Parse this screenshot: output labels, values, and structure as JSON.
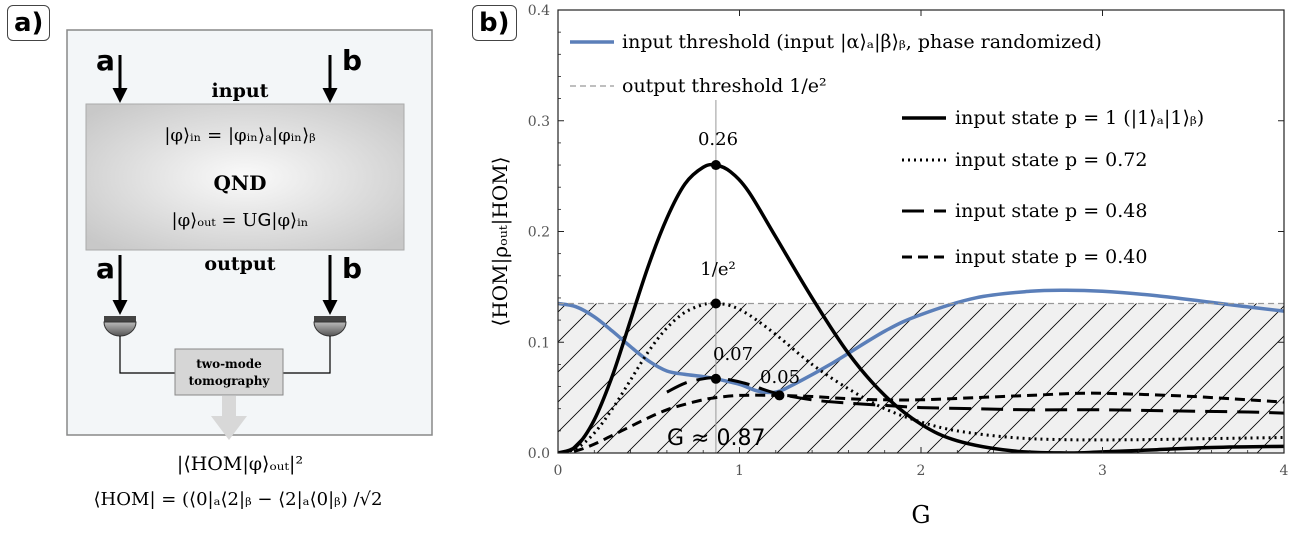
{
  "panel_a": {
    "label": "a)",
    "mode_a": "a",
    "mode_b": "b",
    "input_label": "input",
    "output_label": "output",
    "state_in": "|φ⟩ᵢₙ = |φᵢₙ⟩ₐ|φᵢₙ⟩ᵦ",
    "qnd_label": "QND",
    "state_out": "|φ⟩ₒᵤₜ = U𝖦|φ⟩ᵢₙ",
    "tomography_line1": "two-mode",
    "tomography_line2": "tomography",
    "formula1": "|⟨HOM|φ⟩ₒᵤₜ|²",
    "formula2": "⟨HOM| = (⟨0|ₐ⟨2|ᵦ − ⟨2|ₐ⟨0|ᵦ) /√2"
  },
  "panel_b": {
    "label": "b)",
    "annot_G": "𝖦 ≈ 0.87",
    "annot_026": "0.26",
    "annot_1e2": "1/e²",
    "annot_007": "0.07",
    "annot_005": "0.05"
  },
  "chart_data": {
    "type": "line",
    "xlabel": "G",
    "ylabel": "⟨HOM|ρₒᵤₜ|HOM⟩",
    "xlim": [
      0,
      4
    ],
    "ylim": [
      0,
      0.4
    ],
    "xticks": [
      "0",
      "1",
      "2",
      "3",
      "4"
    ],
    "yticks": [
      "0.0",
      "0.1",
      "0.2",
      "0.3",
      "0.4"
    ],
    "legend_placement": "top",
    "colors": {
      "blue": "#5b7fb9",
      "black": "#000000",
      "grey": "#999999",
      "shade": "#f0f0f0"
    },
    "output_threshold": 0.135,
    "marker_G": 0.87,
    "series": [
      {
        "name": "input threshold (input |α⟩ₐ|β⟩ᵦ, phase randomized)",
        "style": "blue",
        "x": [
          0,
          0.1,
          0.2,
          0.3,
          0.4,
          0.5,
          0.6,
          0.7,
          0.8,
          0.87,
          1.0,
          1.1,
          1.2,
          1.3,
          1.5,
          1.8,
          2.0,
          2.3,
          2.6,
          2.8,
          3.0,
          3.3,
          3.6,
          4.0
        ],
        "y": [
          0.135,
          0.132,
          0.123,
          0.11,
          0.096,
          0.083,
          0.074,
          0.071,
          0.069,
          0.067,
          0.062,
          0.056,
          0.055,
          0.062,
          0.08,
          0.11,
          0.125,
          0.14,
          0.146,
          0.147,
          0.146,
          0.142,
          0.136,
          0.128
        ]
      },
      {
        "name": "output threshold 1/e²",
        "style": "grey-dash",
        "x": [
          0,
          4
        ],
        "y": [
          0.135,
          0.135
        ]
      },
      {
        "name": "input state p = 1 (|1⟩ₐ|1⟩ᵦ)",
        "style": "solid",
        "x": [
          0,
          0.1,
          0.2,
          0.3,
          0.4,
          0.5,
          0.6,
          0.7,
          0.8,
          0.87,
          0.95,
          1.05,
          1.2,
          1.4,
          1.6,
          1.8,
          2.0,
          2.2,
          2.5,
          2.8,
          3.0,
          3.3,
          3.6,
          4.0
        ],
        "y": [
          0,
          0.006,
          0.03,
          0.07,
          0.12,
          0.17,
          0.212,
          0.243,
          0.258,
          0.26,
          0.254,
          0.236,
          0.195,
          0.14,
          0.09,
          0.052,
          0.026,
          0.011,
          0.002,
          0.0,
          0.001,
          0.003,
          0.005,
          0.006
        ]
      },
      {
        "name": "input state p = 0.72",
        "style": "dotted",
        "x": [
          0,
          0.1,
          0.2,
          0.3,
          0.4,
          0.5,
          0.6,
          0.7,
          0.8,
          0.87,
          0.95,
          1.05,
          1.2,
          1.4,
          1.6,
          1.8,
          2.0,
          2.2,
          2.5,
          2.8,
          3.2,
          3.6,
          4.0
        ],
        "y": [
          0,
          0.004,
          0.018,
          0.04,
          0.066,
          0.092,
          0.113,
          0.127,
          0.134,
          0.135,
          0.133,
          0.125,
          0.107,
          0.08,
          0.058,
          0.04,
          0.028,
          0.02,
          0.014,
          0.012,
          0.012,
          0.013,
          0.014
        ]
      },
      {
        "name": "input state p = 0.48",
        "style": "long-dash",
        "x": [
          0.6,
          0.7,
          0.8,
          0.87,
          0.95,
          1.05,
          1.2,
          1.4,
          1.6,
          1.8,
          2.0,
          2.3,
          2.6,
          3.0,
          3.4,
          3.8,
          4.0
        ],
        "y": [
          0.055,
          0.063,
          0.067,
          0.068,
          0.066,
          0.062,
          0.054,
          0.048,
          0.045,
          0.043,
          0.041,
          0.04,
          0.039,
          0.039,
          0.038,
          0.037,
          0.036
        ]
      },
      {
        "name": "input state p = 0.40",
        "style": "dashed",
        "x": [
          0,
          0.1,
          0.2,
          0.3,
          0.4,
          0.5,
          0.6,
          0.7,
          0.8,
          0.87,
          1.0,
          1.2,
          1.4,
          1.6,
          1.8,
          2.0,
          2.3,
          2.6,
          2.9,
          3.2,
          3.5,
          3.8,
          4.0
        ],
        "y": [
          0,
          0.002,
          0.008,
          0.016,
          0.024,
          0.032,
          0.039,
          0.044,
          0.048,
          0.05,
          0.052,
          0.052,
          0.051,
          0.049,
          0.048,
          0.048,
          0.05,
          0.052,
          0.054,
          0.053,
          0.051,
          0.048,
          0.046
        ]
      }
    ],
    "points": [
      {
        "x": 0.87,
        "y": 0.26
      },
      {
        "x": 0.87,
        "y": 0.135
      },
      {
        "x": 0.87,
        "y": 0.067
      },
      {
        "x": 1.22,
        "y": 0.052
      }
    ]
  }
}
